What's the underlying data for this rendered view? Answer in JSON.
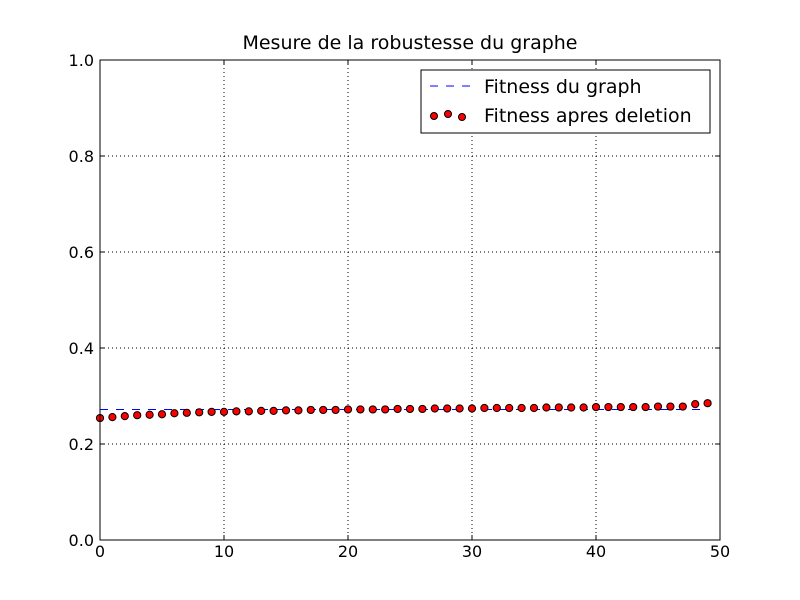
{
  "chart_data": {
    "type": "scatter",
    "title": "Mesure de la robustesse du graphe",
    "xlabel": "",
    "ylabel": "",
    "xlim": [
      0,
      50
    ],
    "ylim": [
      0,
      1
    ],
    "x_ticks": [
      0,
      10,
      20,
      30,
      40,
      50
    ],
    "x_tick_labels": [
      "0",
      "10",
      "20",
      "30",
      "40",
      "50"
    ],
    "y_ticks": [
      0,
      0.2,
      0.4,
      0.6,
      0.8,
      1.0
    ],
    "y_tick_labels": [
      "0.0",
      "0.2",
      "0.4",
      "0.6",
      "0.8",
      "1.0"
    ],
    "grid": true,
    "legend_position": "top-right",
    "series": [
      {
        "name": "Fitness du graph",
        "kind": "line",
        "style": "dashed",
        "color": "#0000ff",
        "x": [
          0,
          49
        ],
        "y": [
          0.272,
          0.272
        ]
      },
      {
        "name": "Fitness apres deletion",
        "kind": "scatter",
        "color": "#ff0000",
        "edge_color": "#000000",
        "x": [
          0,
          1,
          2,
          3,
          4,
          5,
          6,
          7,
          8,
          9,
          10,
          11,
          12,
          13,
          14,
          15,
          16,
          17,
          18,
          19,
          20,
          21,
          22,
          23,
          24,
          25,
          26,
          27,
          28,
          29,
          30,
          31,
          32,
          33,
          34,
          35,
          36,
          37,
          38,
          39,
          40,
          41,
          42,
          43,
          44,
          45,
          46,
          47,
          48,
          49
        ],
        "y": [
          0.254,
          0.256,
          0.258,
          0.26,
          0.261,
          0.262,
          0.264,
          0.265,
          0.266,
          0.267,
          0.267,
          0.268,
          0.268,
          0.269,
          0.269,
          0.27,
          0.27,
          0.271,
          0.271,
          0.271,
          0.272,
          0.272,
          0.272,
          0.272,
          0.273,
          0.273,
          0.273,
          0.274,
          0.274,
          0.274,
          0.274,
          0.275,
          0.275,
          0.275,
          0.275,
          0.275,
          0.276,
          0.276,
          0.276,
          0.276,
          0.277,
          0.277,
          0.277,
          0.277,
          0.277,
          0.278,
          0.278,
          0.278,
          0.283,
          0.285
        ]
      }
    ]
  }
}
